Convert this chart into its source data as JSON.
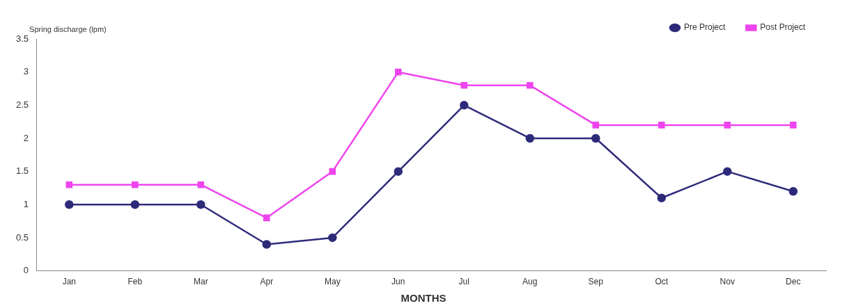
{
  "chart_data": {
    "type": "line",
    "ylabel": "Spring discharge (lpm)",
    "xlabel": "MONTHS",
    "categories": [
      "Jan",
      "Feb",
      "Mar",
      "Apr",
      "May",
      "Jun",
      "Jul",
      "Aug",
      "Sep",
      "Oct",
      "Nov",
      "Dec"
    ],
    "series": [
      {
        "name": "Pre Project",
        "color": "#2e2a7a",
        "marker": "circle",
        "values": [
          1,
          1,
          1,
          0.4,
          0.5,
          1.5,
          2.5,
          2,
          2,
          1.1,
          1.5,
          1.2
        ]
      },
      {
        "name": "Post Project",
        "color": "#ee44ee",
        "marker": "square",
        "values": [
          1.3,
          1.3,
          1.3,
          0.8,
          1.5,
          3,
          2.8,
          2.8,
          2.2,
          2.2,
          2.2,
          2.2
        ]
      }
    ],
    "ylim": [
      0,
      3.5
    ],
    "yticks": [
      0,
      0.5,
      1,
      1.5,
      2,
      2.5,
      3,
      3.5
    ],
    "grid": false,
    "legend": "top right",
    "line_style": "solid"
  }
}
